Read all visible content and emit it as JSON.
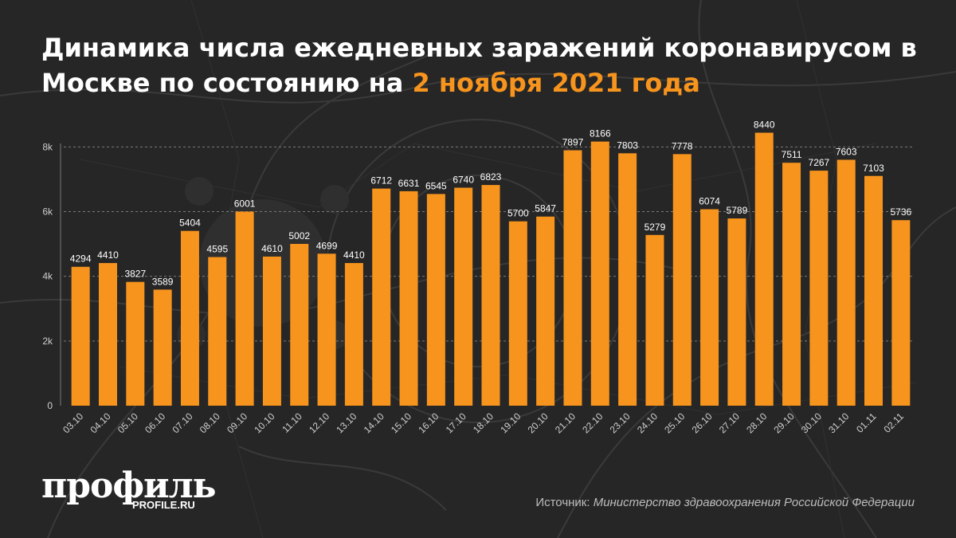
{
  "header": {
    "title_main": "Динамика числа ежедневных заражений коронавирусом в Москве по состоянию на",
    "title_highlight": "2 ноября 2021 года"
  },
  "footer": {
    "logo_text": "профиль",
    "logo_url": "PROFILE.RU",
    "source_label": "Источник:",
    "source_value": "Министерство здравоохранения Российской Федерации"
  },
  "colors": {
    "background": "#262626",
    "bar": "#f7941d",
    "highlight": "#f7941d",
    "text": "#ffffff",
    "axis_text": "#cfcfcf"
  },
  "chart_data": {
    "type": "bar",
    "categories": [
      "03.10",
      "04.10",
      "05.10",
      "06.10",
      "07.10",
      "08.10",
      "09.10",
      "10.10",
      "11.10",
      "12.10",
      "13.10",
      "14.10",
      "15.10",
      "16.10",
      "17.10",
      "18.10",
      "19.10",
      "20.10",
      "21.10",
      "22.10",
      "23.10",
      "24.10",
      "25.10",
      "26.10",
      "27.10",
      "28.10",
      "29.10",
      "30.10",
      "31.10",
      "01.11",
      "02.11"
    ],
    "values": [
      4294,
      4410,
      3827,
      3589,
      5404,
      4595,
      6001,
      4610,
      5002,
      4699,
      4410,
      6712,
      6631,
      6545,
      6740,
      6823,
      5700,
      5847,
      7897,
      8166,
      7803,
      5279,
      7778,
      6074,
      5789,
      8440,
      7511,
      7267,
      7603,
      7103,
      5736
    ],
    "yticks": [
      0,
      2000,
      4000,
      6000,
      8000
    ],
    "ytick_labels": [
      "0",
      "2k",
      "4k",
      "6k",
      "8k"
    ],
    "ylim": [
      0,
      8600
    ],
    "grid": "horizontal dashed",
    "legend": "none"
  }
}
